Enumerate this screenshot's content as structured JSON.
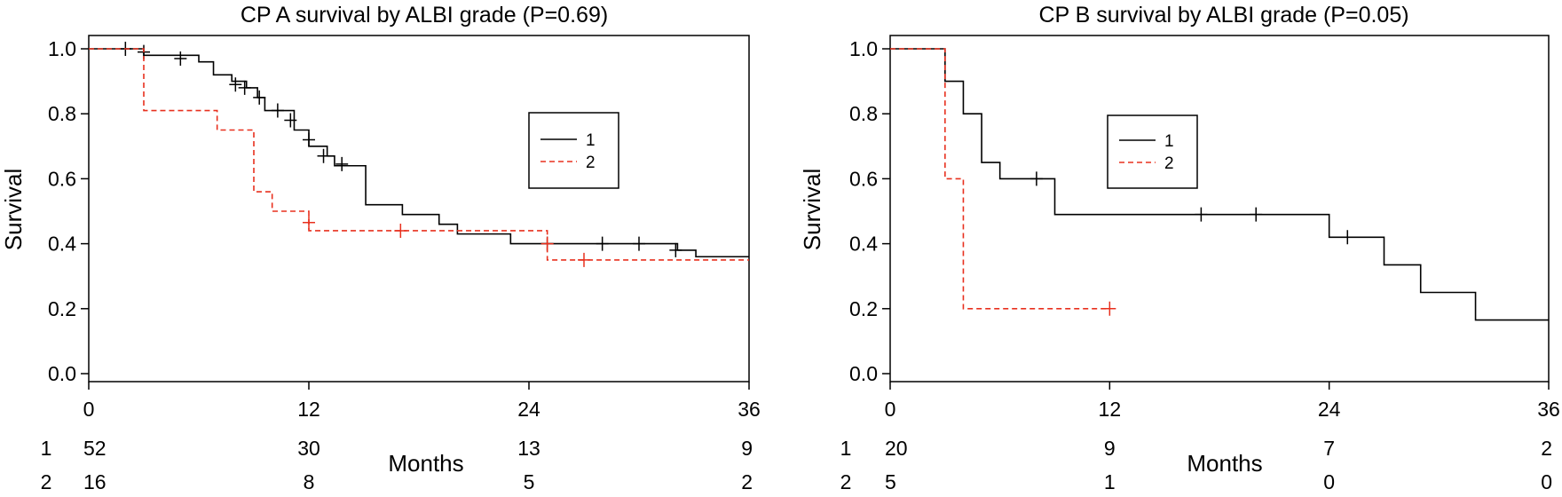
{
  "chart_data": [
    {
      "type": "line",
      "title": "CP A survival by ALBI grade (P=0.69)",
      "xlabel": "Months",
      "ylabel": "Survival",
      "xlim": [
        0,
        36
      ],
      "ylim": [
        0,
        1
      ],
      "x_ticks": [
        "0",
        "12",
        "24",
        "36"
      ],
      "y_ticks": [
        "0.0",
        "0.2",
        "0.4",
        "0.6",
        "0.8",
        "1.0"
      ],
      "legend_position": "upper-right",
      "series": [
        {
          "name": "1",
          "color": "#000000",
          "line_style": "solid",
          "steps": [
            [
              0,
              1.0
            ],
            [
              3,
              0.98
            ],
            [
              6,
              0.96
            ],
            [
              6.8,
              0.92
            ],
            [
              7.8,
              0.9
            ],
            [
              8.6,
              0.88
            ],
            [
              9.2,
              0.85
            ],
            [
              9.6,
              0.81
            ],
            [
              10.9,
              0.81
            ],
            [
              11.2,
              0.75
            ],
            [
              12,
              0.7
            ],
            [
              13,
              0.67
            ],
            [
              13.4,
              0.64
            ],
            [
              15,
              0.64
            ],
            [
              15.1,
              0.52
            ],
            [
              17,
              0.52
            ],
            [
              17.1,
              0.49
            ],
            [
              19,
              0.49
            ],
            [
              19.1,
              0.46
            ],
            [
              20,
              0.46
            ],
            [
              20.1,
              0.43
            ],
            [
              22.9,
              0.43
            ],
            [
              23,
              0.4
            ],
            [
              32,
              0.4
            ],
            [
              32.1,
              0.38
            ],
            [
              33,
              0.38
            ],
            [
              33.1,
              0.36
            ],
            [
              36,
              0.36
            ]
          ],
          "censored": [
            [
              2,
              1.0
            ],
            [
              3,
              0.99
            ],
            [
              5,
              0.97
            ],
            [
              8,
              0.89
            ],
            [
              8.5,
              0.88
            ],
            [
              9.3,
              0.85
            ],
            [
              10.3,
              0.81
            ],
            [
              11,
              0.78
            ],
            [
              12,
              0.72
            ],
            [
              12.8,
              0.67
            ],
            [
              13.8,
              0.645
            ],
            [
              25,
              0.4
            ],
            [
              28,
              0.4
            ],
            [
              30,
              0.4
            ],
            [
              32,
              0.38
            ]
          ]
        },
        {
          "name": "2",
          "color": "#e8301e",
          "line_style": "dashed",
          "steps": [
            [
              0,
              1.0
            ],
            [
              2.9,
              1.0
            ],
            [
              3,
              0.81
            ],
            [
              6.9,
              0.81
            ],
            [
              7,
              0.75
            ],
            [
              8.9,
              0.75
            ],
            [
              9,
              0.56
            ],
            [
              9.9,
              0.56
            ],
            [
              10,
              0.5
            ],
            [
              11.9,
              0.5
            ],
            [
              12,
              0.44
            ],
            [
              24.9,
              0.44
            ],
            [
              25,
              0.35
            ],
            [
              36,
              0.35
            ]
          ],
          "censored": [
            [
              12,
              0.465
            ],
            [
              17,
              0.44
            ],
            [
              25,
              0.4
            ],
            [
              27,
              0.35
            ]
          ]
        }
      ],
      "risk_table": {
        "groups": [
          "1",
          "2"
        ],
        "times": [
          0,
          12,
          24,
          36
        ],
        "values": [
          [
            "52",
            "30",
            "13",
            "9"
          ],
          [
            "16",
            "8",
            "5",
            "2"
          ]
        ]
      }
    },
    {
      "type": "line",
      "title": "CP B survival by ALBI grade (P=0.05)",
      "xlabel": "Months",
      "ylabel": "Survival",
      "xlim": [
        0,
        36
      ],
      "ylim": [
        0,
        1
      ],
      "x_ticks": [
        "0",
        "12",
        "24",
        "36"
      ],
      "y_ticks": [
        "0.0",
        "0.2",
        "0.4",
        "0.6",
        "0.8",
        "1.0"
      ],
      "legend_position": "upper-middle",
      "series": [
        {
          "name": "1",
          "color": "#000000",
          "line_style": "solid",
          "steps": [
            [
              0,
              1.0
            ],
            [
              3,
              0.9
            ],
            [
              4,
              0.8
            ],
            [
              5,
              0.65
            ],
            [
              6,
              0.6
            ],
            [
              9,
              0.49
            ],
            [
              24,
              0.42
            ],
            [
              27,
              0.335
            ],
            [
              29,
              0.25
            ],
            [
              32,
              0.165
            ],
            [
              36,
              0.165
            ]
          ],
          "censored": [
            [
              8,
              0.6
            ],
            [
              17,
              0.49
            ],
            [
              20,
              0.49
            ],
            [
              25,
              0.42
            ]
          ]
        },
        {
          "name": "2",
          "color": "#e8301e",
          "line_style": "dashed",
          "steps": [
            [
              0,
              1.0
            ],
            [
              3,
              0.6
            ],
            [
              4,
              0.2
            ],
            [
              12,
              0.2
            ]
          ],
          "censored": [
            [
              12,
              0.2
            ]
          ]
        }
      ],
      "risk_table": {
        "groups": [
          "1",
          "2"
        ],
        "times": [
          0,
          12,
          24,
          36
        ],
        "values": [
          [
            "20",
            "9",
            "7",
            "2"
          ],
          [
            "5",
            "1",
            "0",
            "0"
          ]
        ]
      }
    }
  ]
}
